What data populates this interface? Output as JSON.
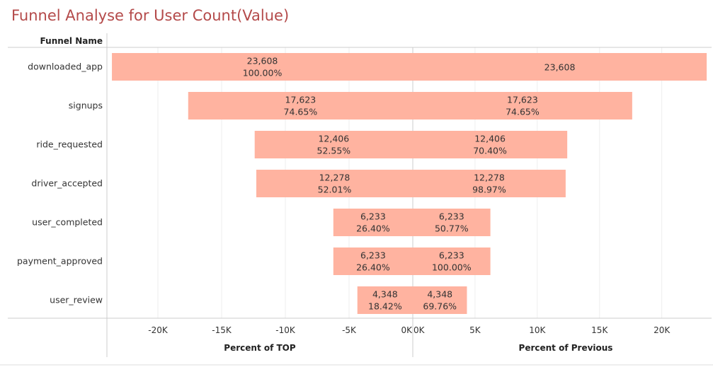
{
  "title": "Funnel Analyse for User Count(Value)",
  "row_header": "Funnel Name",
  "colors": {
    "bar": "#ffb3a0",
    "title": "#b44a4a",
    "grid": "#eeeeee",
    "axis": "#cccccc"
  },
  "chart_data": {
    "type": "bar",
    "orientation": "horizontal",
    "categories": [
      "downloaded_app",
      "signups",
      "ride_requested",
      "driver_accepted",
      "user_completed",
      "payment_approved",
      "user_review"
    ],
    "panels": [
      {
        "xlabel": "Percent of TOP",
        "direction": "reversed",
        "xlim": [
          -24000,
          0
        ],
        "ticks": [
          -20000,
          -15000,
          -10000,
          -5000,
          0
        ],
        "tick_labels": [
          "-20K",
          "-15K",
          "-10K",
          "-5K",
          "0K"
        ],
        "values": [
          23608,
          17623,
          12406,
          12278,
          6233,
          6233,
          4348
        ],
        "value_labels": [
          "23,608",
          "17,623",
          "12,406",
          "12,278",
          "6,233",
          "6,233",
          "4,348"
        ],
        "percent_labels": [
          "100.00%",
          "74.65%",
          "52.55%",
          "52.01%",
          "26.40%",
          "26.40%",
          "18.42%"
        ]
      },
      {
        "xlabel": "Percent of Previous",
        "direction": "normal",
        "xlim": [
          0,
          24000
        ],
        "ticks": [
          0,
          5000,
          10000,
          15000,
          20000
        ],
        "tick_labels": [
          "0K",
          "5K",
          "10K",
          "15K",
          "20K"
        ],
        "values": [
          23608,
          17623,
          12406,
          12278,
          6233,
          6233,
          4348
        ],
        "value_labels": [
          "23,608",
          "17,623",
          "12,406",
          "12,278",
          "6,233",
          "6,233",
          "4,348"
        ],
        "percent_labels": [
          "",
          "74.65%",
          "70.40%",
          "98.97%",
          "50.77%",
          "100.00%",
          "69.76%"
        ]
      }
    ]
  }
}
